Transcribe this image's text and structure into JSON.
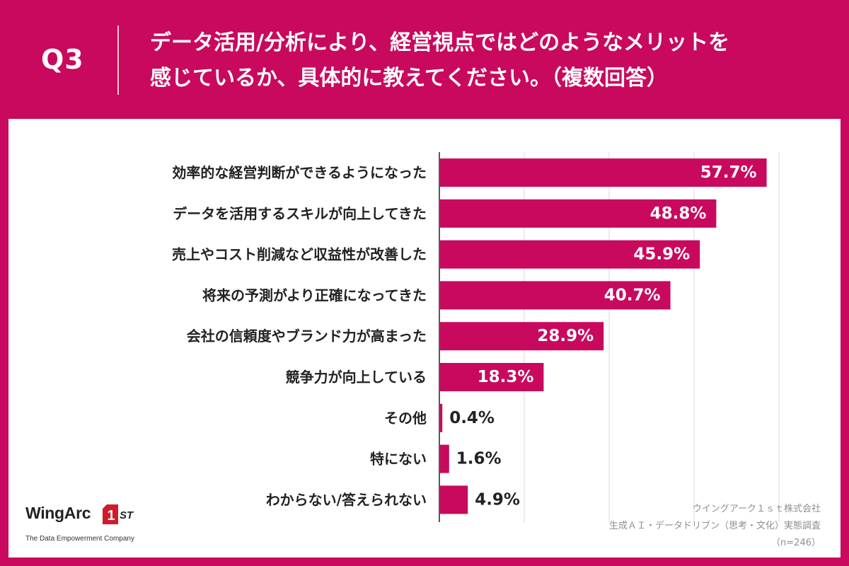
{
  "header": {
    "question_number": "Q3",
    "title_line1": "データ活用/分析により、経営視点ではどのようなメリットを",
    "title_line2": "感じているか、具体的に教えてください。（複数回答）"
  },
  "chart_data": {
    "type": "bar",
    "orientation": "horizontal",
    "categories": [
      "効率的な経営判断ができるようになった",
      "データを活用するスキルが向上してきた",
      "売上やコスト削減など収益性が改善した",
      "将来の予測がより正確になってきた",
      "会社の信頼度やブランド力が高まった",
      "競争力が向上している",
      "その他",
      "特にない",
      "わからない/答えられない"
    ],
    "values": [
      57.7,
      48.8,
      45.9,
      40.7,
      28.9,
      18.3,
      0.4,
      1.6,
      4.9
    ],
    "value_labels": [
      "57.7%",
      "48.8%",
      "45.9%",
      "40.7%",
      "28.9%",
      "18.3%",
      "0.4%",
      "1.6%",
      "4.9%"
    ],
    "unit": "%",
    "xlim": [
      0,
      60
    ],
    "gridlines": [
      0,
      15,
      30,
      45,
      60
    ],
    "grid": true,
    "bar_color": "#c8095e"
  },
  "logo": {
    "name": "WingArc",
    "badge_text": "1",
    "suffix": "ST",
    "tagline": "The Data Empowerment Company"
  },
  "source": {
    "line1": "ウイングアーク１ｓｔ株式会社",
    "line2": "生成ＡＩ・データドリブン（思考・文化）実態調査",
    "line3": "（n=246）"
  },
  "colors": {
    "brand": "#c8095e",
    "panel": "#ffffff",
    "grid": "#d9d9d9"
  }
}
